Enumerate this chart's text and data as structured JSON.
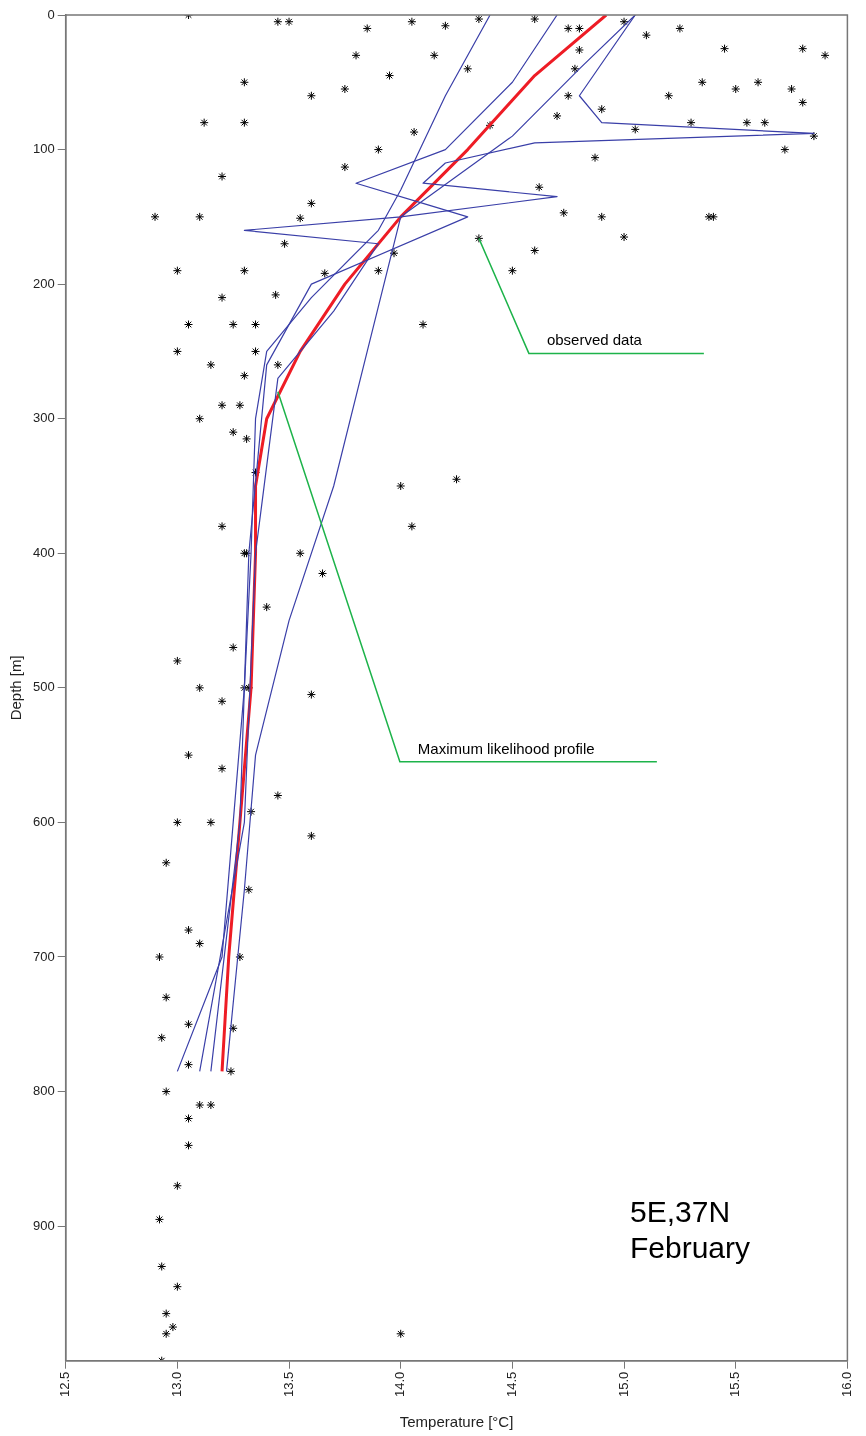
{
  "chart_data": {
    "type": "scatter",
    "xlabel": "Temperature [°C]",
    "ylabel": "Depth [m]",
    "xlim": [
      12.5,
      16.0
    ],
    "ylim": [
      1000,
      0
    ],
    "xticks": [
      12.5,
      {
        "value": 13,
        "label": "13.0"
      },
      13.5,
      {
        "value": 14,
        "label": "14.0"
      },
      14.5,
      {
        "value": 15,
        "label": "15.0"
      },
      15.5,
      {
        "value": 16,
        "label": "16.0"
      }
    ],
    "yticks": [
      0,
      100,
      200,
      300,
      400,
      500,
      600,
      700,
      800,
      900
    ],
    "grid": false,
    "legend": false,
    "annotations": [
      {
        "text": "observed data",
        "x": 14.35,
        "y": 166
      },
      {
        "text": "Maximum likelihood profile",
        "x": 13.45,
        "y": 280
      },
      "5E,37N",
      "February"
    ],
    "series": [
      {
        "color": "#000000",
        "marker": "cross",
        "x": [
          14.8,
          14.78,
          14.75,
          14.7,
          14.4,
          14.06,
          13.9,
          13.75,
          13.6,
          13.55,
          13.48,
          13.66,
          13.44,
          13.35,
          13.3,
          13.28,
          13.31,
          13.31,
          13.32,
          13.33,
          13.32,
          13.28,
          13.25,
          13.24,
          14.87,
          14.62,
          14.73,
          14.35,
          13.97,
          14.8,
          13.45,
          13.05,
          13.5,
          13.85,
          14.05,
          14.2,
          14.35,
          14.6,
          14.75,
          15.0,
          15.1,
          15.25,
          15.45,
          15.8,
          15.9,
          15.6,
          15.5,
          15.35,
          15.2,
          15.75,
          15.8,
          15.85,
          15.72,
          15.38,
          15.3,
          15.55,
          15.63,
          14.9,
          15.05,
          14.15,
          14.3,
          13.95,
          13.8,
          13.75,
          13.6,
          13.3,
          13.3,
          13.12,
          13.2,
          13.1,
          12.9,
          13.0,
          13.05,
          13.0,
          13.15,
          13.2,
          13.1,
          13.25,
          13.35,
          13.2,
          13.3,
          13.55,
          13.65,
          13.4,
          13.25,
          13.3,
          13.2,
          13.1,
          13.0,
          13.05,
          13.2,
          13.15,
          13.0,
          12.95,
          13.05,
          13.1,
          12.92,
          12.95,
          13.05,
          13.05,
          12.93,
          12.95,
          13.1,
          13.15,
          13.05,
          13.05,
          13.0,
          12.92,
          12.93,
          13.0,
          12.95,
          12.98,
          12.95,
          12.93,
          14.0,
          13.6,
          14.0,
          14.05,
          14.25,
          14.1,
          14.6,
          14.9,
          15.0,
          15.4,
          14.5,
          13.9,
          13.3,
          13.2,
          13.25,
          13.35,
          13.45,
          13.6,
          13.45
        ],
        "values": [
          10,
          40,
          60,
          75,
          82,
          87,
          100,
          113,
          140,
          151,
          170,
          192,
          208,
          230,
          268,
          290,
          315,
          400,
          500,
          592,
          650,
          700,
          753,
          785,
          106,
          128,
          147,
          166,
          177,
          26,
          5,
          0,
          5,
          10,
          5,
          8,
          3,
          3,
          10,
          5,
          15,
          10,
          25,
          25,
          30,
          50,
          55,
          50,
          60,
          55,
          65,
          90,
          100,
          150,
          80,
          80,
          80,
          70,
          85,
          30,
          40,
          45,
          30,
          55,
          60,
          50,
          80,
          80,
          120,
          150,
          150,
          190,
          230,
          250,
          260,
          290,
          300,
          310,
          340,
          380,
          400,
          400,
          415,
          440,
          470,
          500,
          510,
          500,
          480,
          550,
          560,
          600,
          600,
          630,
          680,
          690,
          700,
          730,
          750,
          780,
          760,
          800,
          810,
          810,
          820,
          840,
          870,
          895,
          930,
          945,
          965,
          975,
          980,
          1000,
          980,
          505,
          350,
          380,
          345,
          230,
          175,
          150,
          165,
          150,
          190,
          190,
          190,
          210,
          230,
          250,
          260,
          610,
          580
        ]
      },
      {
        "type": "line",
        "color": "#3a3fa8",
        "x": [
          14.4,
          14.2,
          14.0,
          13.9,
          13.6,
          13.4,
          13.35,
          13.33,
          13.3,
          13.25,
          13.2,
          13.0
        ],
        "values": [
          0,
          60,
          130,
          160,
          210,
          250,
          300,
          400,
          500,
          600,
          700,
          785
        ]
      },
      {
        "type": "line",
        "color": "#3a3fa8",
        "x": [
          15.05,
          14.8,
          14.5,
          14.0,
          13.85,
          13.7,
          13.5,
          13.35,
          13.3,
          13.22
        ],
        "values": [
          0,
          40,
          90,
          150,
          250,
          350,
          450,
          550,
          650,
          785
        ]
      },
      {
        "type": "line",
        "color": "#3a3fa8",
        "x": [
          15.05,
          14.8,
          14.9,
          15.85,
          14.6,
          14.2,
          14.1,
          14.7,
          14.0,
          13.3,
          13.9,
          13.7,
          13.45,
          13.35,
          13.3,
          13.1
        ],
        "values": [
          0,
          60,
          80,
          88,
          95,
          110,
          125,
          135,
          150,
          160,
          170,
          220,
          270,
          400,
          600,
          785
        ]
      },
      {
        "type": "line",
        "color": "#3a3fa8",
        "x": [
          14.7,
          14.5,
          14.2,
          13.8,
          14.1,
          14.3,
          13.6,
          13.4,
          13.32,
          13.28,
          13.15
        ],
        "values": [
          0,
          50,
          100,
          125,
          140,
          150,
          200,
          260,
          400,
          600,
          785
        ]
      },
      {
        "type": "line",
        "color": "#ee1c25",
        "x": [
          14.92,
          14.6,
          14.3,
          14.0,
          13.75,
          13.55,
          13.4,
          13.35,
          13.35,
          13.33,
          13.28,
          13.23,
          13.2
        ],
        "values": [
          0,
          45,
          100,
          150,
          200,
          250,
          300,
          350,
          400,
          500,
          600,
          700,
          785
        ]
      }
    ]
  }
}
